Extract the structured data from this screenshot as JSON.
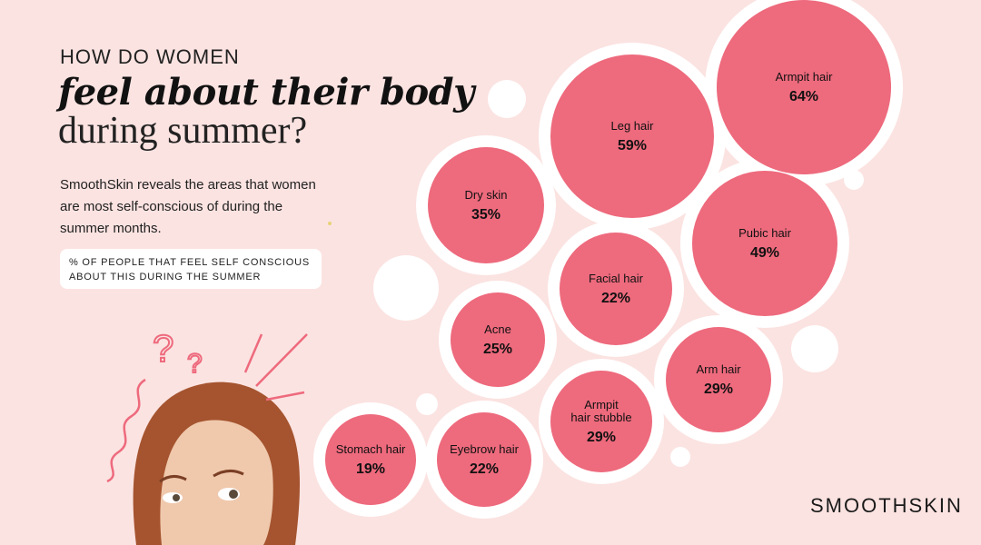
{
  "header": {
    "kicker": "HOW DO WOMEN",
    "title_emphasis": "feel about their body",
    "title_rest": "during summer?"
  },
  "intro_text": "SmoothSkin reveals the areas that women are most self-conscious of during the summer months.",
  "legend_text": "% OF PEOPLE THAT FEEL SELF CONSCIOUS ABOUT THIS DURING THE SUMMER",
  "brand": "SMOOTHSKIN",
  "colors": {
    "background": "#fbe3e1",
    "bubble": "#ee6a7d",
    "bubble_outline": "#ffffff"
  },
  "chart_data": {
    "type": "bubble",
    "title": "feel about their body during summer?",
    "unit": "%",
    "categories": [
      "Armpit hair",
      "Leg hair",
      "Pubic hair",
      "Dry skin",
      "Armpit hair stubble",
      "Arm hair",
      "Acne",
      "Facial hair",
      "Eyebrow hair",
      "Stomach hair"
    ],
    "values": [
      64,
      59,
      49,
      35,
      29,
      29,
      25,
      22,
      22,
      19
    ],
    "items": [
      {
        "label": "Armpit hair",
        "value": 64,
        "display": "64%"
      },
      {
        "label": "Leg hair",
        "value": 59,
        "display": "59%"
      },
      {
        "label": "Pubic hair",
        "value": 49,
        "display": "49%"
      },
      {
        "label": "Dry skin",
        "value": 35,
        "display": "35%"
      },
      {
        "label": "Facial hair",
        "value": 22,
        "display": "22%"
      },
      {
        "label": "Acne",
        "value": 25,
        "display": "25%"
      },
      {
        "label": "Arm hair",
        "value": 29,
        "display": "29%"
      },
      {
        "label": "Armpit hair stubble",
        "value": 29,
        "display": "29%"
      },
      {
        "label": "Eyebrow hair",
        "value": 22,
        "display": "22%"
      },
      {
        "label": "Stomach hair",
        "value": 19,
        "display": "19%"
      }
    ]
  }
}
